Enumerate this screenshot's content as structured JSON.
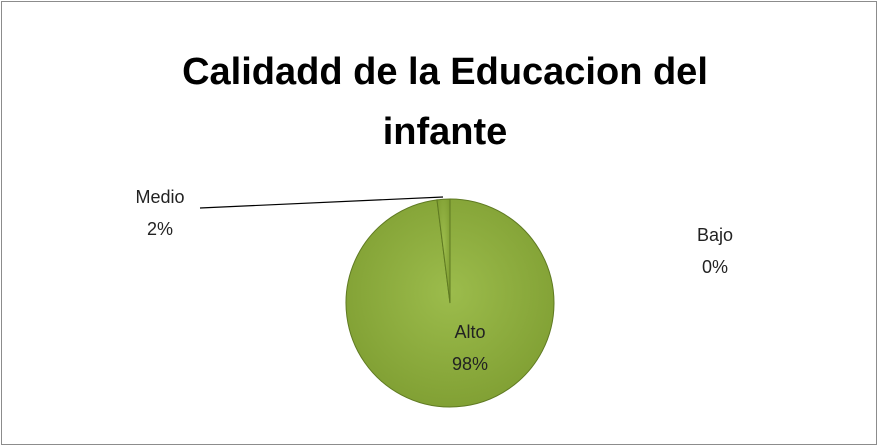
{
  "chart_data": {
    "type": "pie",
    "title": "Calidadd de la Educacion del infante",
    "categories": [
      "Alto",
      "Medio",
      "Bajo"
    ],
    "values": [
      98,
      2,
      0
    ],
    "value_labels": [
      "98%",
      "2%",
      "0%"
    ],
    "color": "#8fae3f"
  }
}
